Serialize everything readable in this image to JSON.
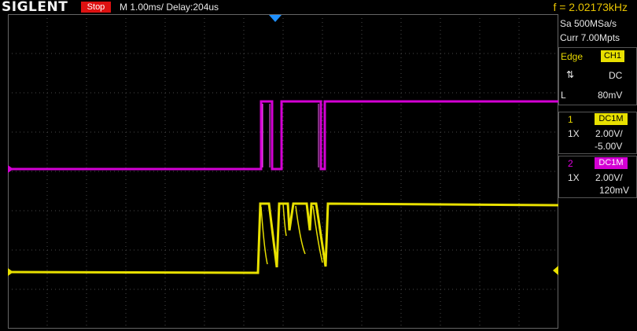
{
  "header": {
    "brand": "SIGLENT",
    "run_state": "Stop",
    "timebase": "M 1.00ms/ Delay:204us",
    "frequency": "f = 2.02173kHz"
  },
  "acquisition": {
    "sample_rate": "Sa 500MSa/s",
    "memory_depth": "Curr 7.00Mpts"
  },
  "trigger": {
    "type": "Edge",
    "source": "CH1",
    "slope_symbol": "⇅",
    "coupling": "DC",
    "level_label": "L",
    "level": "80mV"
  },
  "channels": [
    {
      "number": "1",
      "coupling": "DC1M",
      "probe": "1X",
      "scale": "2.00V/",
      "offset": "-5.00V",
      "color": "#e8e000"
    },
    {
      "number": "2",
      "coupling": "DC1M",
      "probe": "1X",
      "scale": "2.00V/",
      "offset": "120mV",
      "color": "#d400d4"
    }
  ],
  "colors": {
    "ch1": "#e8e000",
    "ch2": "#d400d4",
    "run_state_bg": "#dd1111",
    "trigger_marker": "#1e90ff"
  }
}
